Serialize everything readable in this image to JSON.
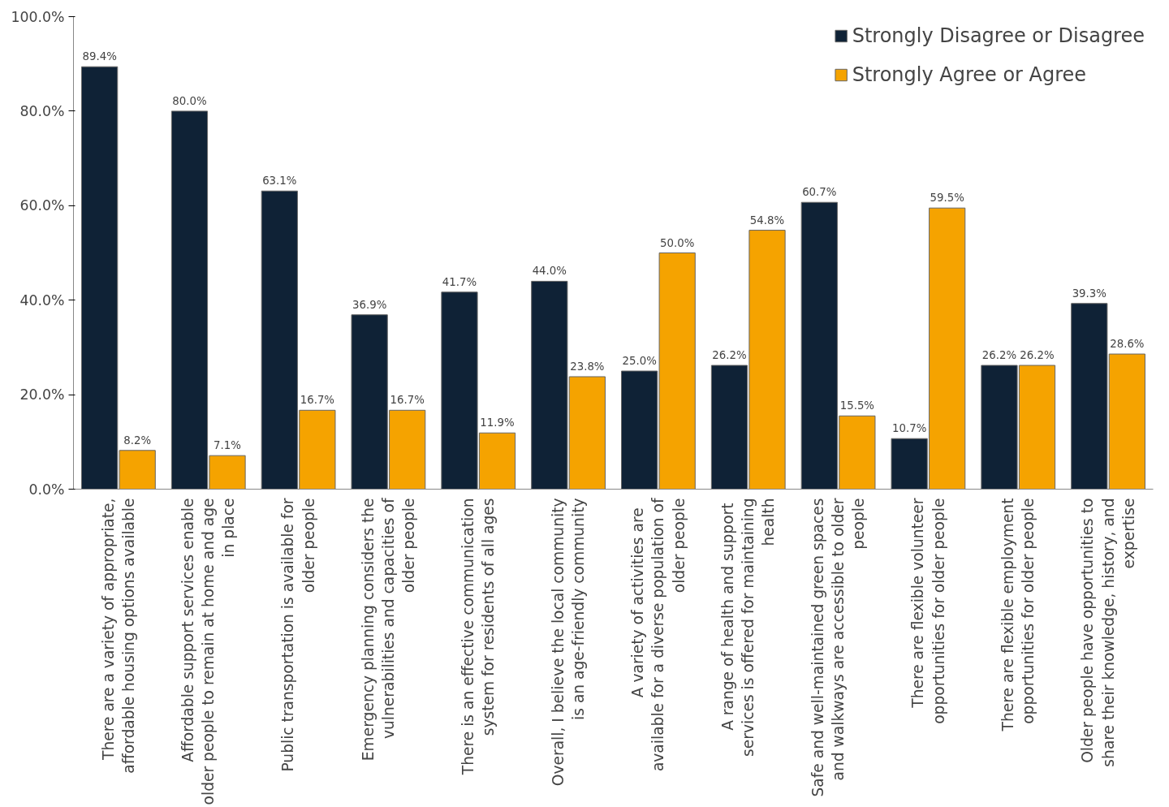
{
  "chart_data": {
    "type": "bar",
    "categories": [
      "There are a variety of appropriate, affordable housing options available",
      "Affordable support services enable older people to remain at home and age in place",
      "Public transportation is available for older people",
      "Emergency planning considers the vulnerabilities and capacities of older people",
      "There is an effective communication system for residents of all ages",
      "Overall, I believe the local community is an age-friendly community",
      "A  variety of  activities are available for a diverse population of older people",
      "A range of health and  support services is offered for maintaining health",
      "Safe and well-maintained green spaces and walkways are accessible to older people",
      "There are flexible volunteer opportunities for older people",
      "There are flexible employment opportunities for older people",
      "Older people have opportunities to share their knowledge, history, and expertise"
    ],
    "series": [
      {
        "name": "Strongly Disagree or Disagree",
        "color": "#0f2236",
        "values": [
          89.4,
          80.0,
          63.1,
          36.9,
          41.7,
          44.0,
          25.0,
          26.2,
          60.7,
          10.7,
          26.2,
          39.3
        ],
        "value_labels": [
          "89.4%",
          "80.0%",
          "63.1%",
          "36.9%",
          "41.7%",
          "44.0%",
          "25.0%",
          "26.2%",
          "60.7%",
          "10.7%",
          "26.2%",
          "39.3%"
        ]
      },
      {
        "name": "Strongly Agree or Agree",
        "color": "#f5a300",
        "values": [
          8.2,
          7.1,
          16.7,
          16.7,
          11.9,
          23.8,
          50.0,
          54.8,
          15.5,
          59.5,
          26.2,
          28.6
        ],
        "value_labels": [
          "8.2%",
          "7.1%",
          "16.7%",
          "16.7%",
          "11.9%",
          "23.8%",
          "50.0%",
          "54.8%",
          "15.5%",
          "59.5%",
          "26.2%",
          "28.6%"
        ]
      }
    ],
    "ylim": [
      0,
      100
    ],
    "yticks": [
      {
        "value": 0,
        "label": "0.0%"
      },
      {
        "value": 20,
        "label": "20.0%"
      },
      {
        "value": 40,
        "label": "40.0%"
      },
      {
        "value": 60,
        "label": "60.0%"
      },
      {
        "value": 80,
        "label": "80.0%"
      },
      {
        "value": 100,
        "label": "100.0%"
      }
    ],
    "grid": false,
    "legend": "top right"
  }
}
